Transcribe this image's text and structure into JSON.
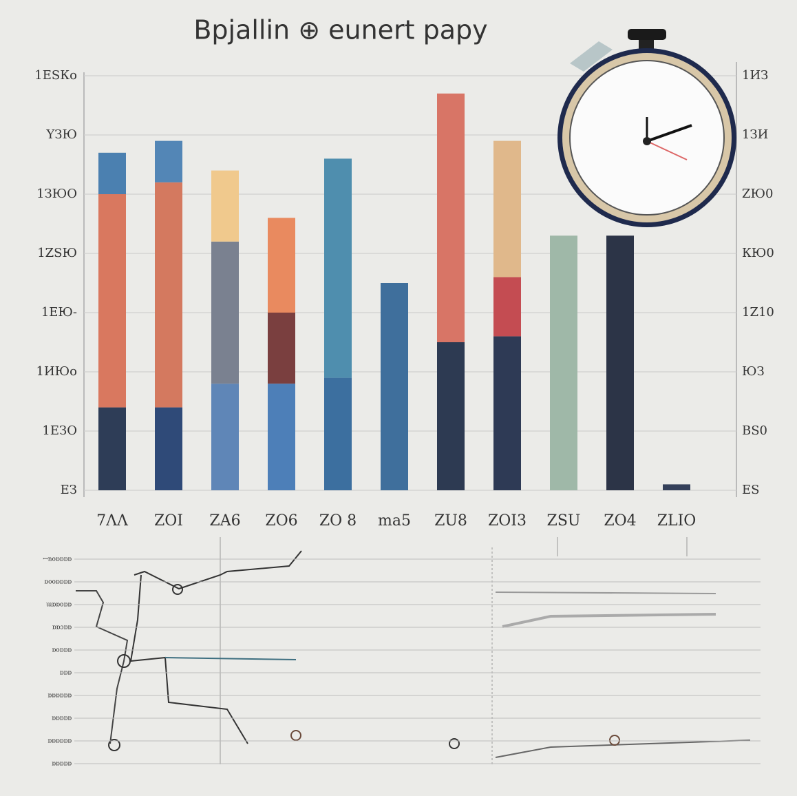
{
  "chart_data": {
    "type": "bar",
    "stacked": true,
    "title": "Bpjallin ⊕ eunert papy",
    "categories": [
      "7ΛΛ",
      "ZOI",
      "ZA6",
      "ZO6",
      "ZO 8",
      "ma5",
      "ZU8",
      "ZOI3",
      "ZSU",
      "ZO4",
      "ZLIO"
    ],
    "series": [
      {
        "colors": [
          "#2e3d57",
          "#2f4a78",
          "#5f86b7",
          "#4d7fb8",
          "#3c6f9f",
          "#3f6f9c",
          "#2d3a52",
          "#2e3a55",
          "#9fb8a8",
          "#2c3447",
          "#34405a"
        ],
        "values": [
          1.4,
          1.4,
          1.8,
          1.8,
          1.9,
          3.5,
          2.5,
          2.6,
          4.3,
          4.3,
          0.1
        ]
      },
      {
        "colors": [
          "#d9785f",
          "#d4795f",
          "#7a8190",
          "#7a3f3f",
          "#4f8eae",
          "#3f6f9c",
          "#d87566",
          "#c44c52",
          "#9fb8a8",
          "#2c3447",
          "#34405a"
        ],
        "values": [
          3.6,
          3.8,
          2.4,
          1.2,
          3.7,
          0,
          4.2,
          1.0,
          0,
          0,
          0
        ]
      },
      {
        "colors": [
          "#4b80b0",
          "#5386b6",
          "#f0c98d",
          "#e98a5f",
          "#5889b5",
          "#3f6f9c",
          "#d87566",
          "#e0b88b",
          "#9fb8a8",
          "#2c3447",
          "#34405a"
        ],
        "values": [
          0.7,
          0.7,
          1.2,
          1.6,
          0,
          0,
          0,
          2.3,
          0,
          0,
          0
        ]
      }
    ],
    "ylim": [
      0,
      7
    ],
    "yticks": [
      {
        "value": 0,
        "label": "ЕЗ"
      },
      {
        "value": 1,
        "label": "1ЕЗO"
      },
      {
        "value": 2,
        "label": "1ИЮо"
      },
      {
        "value": 3,
        "label": "1ЕЮ-"
      },
      {
        "value": 4,
        "label": "1ZЅЮ"
      },
      {
        "value": 5,
        "label": "1ЗЮО"
      },
      {
        "value": 6,
        "label": "ҮЗЮ"
      },
      {
        "value": 7,
        "label": "1ЕЅКо"
      }
    ],
    "y2lim": [
      0,
      7
    ],
    "y2ticks": [
      {
        "value": 0,
        "label": "ЕЅ"
      },
      {
        "value": 1,
        "label": "ВЅ0"
      },
      {
        "value": 2,
        "label": "ЮЗ"
      },
      {
        "value": 3,
        "label": "1Z10"
      },
      {
        "value": 4,
        "label": "КЮ0"
      },
      {
        "value": 5,
        "label": "ZЮ0"
      },
      {
        "value": 6,
        "label": "1ЗИ"
      },
      {
        "value": 7,
        "label": "1ИЗ"
      }
    ],
    "grid": true
  },
  "lower_panel": {
    "row_labels": [
      "ꟷnoɒɒɒɒ",
      "ɒooɒɒɒɒ",
      "ɯɒɒoɒɒ",
      "ɒɒɔɒɒ",
      "ɒoɒɒɒ",
      "ɒɒɒ",
      "ɒɒɒɒɒɒ",
      "ɒɒɒɒɒ",
      "ɒɒɒɒɒɒ",
      "ɒɒɒɒɒ"
    ]
  }
}
